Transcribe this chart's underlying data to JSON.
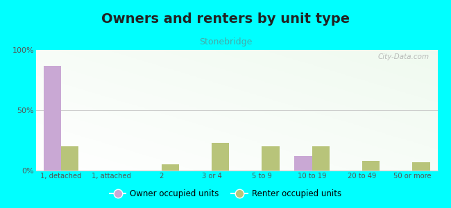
{
  "title": "Owners and renters by unit type",
  "subtitle": "Stonebridge",
  "categories": [
    "1, detached",
    "1, attached",
    "2",
    "3 or 4",
    "5 to 9",
    "10 to 19",
    "20 to 49",
    "50 or more"
  ],
  "owner_values": [
    87,
    0,
    0,
    0,
    0,
    12,
    0,
    0
  ],
  "renter_values": [
    20,
    0,
    5,
    23,
    20,
    20,
    8,
    7
  ],
  "owner_color": "#c9a8d4",
  "renter_color": "#b8c47a",
  "title_fontsize": 14,
  "subtitle_fontsize": 9,
  "subtitle_color": "#44aaaa",
  "title_color": "#222222",
  "ylim": [
    0,
    100
  ],
  "yticks": [
    0,
    50,
    100
  ],
  "ytick_labels": [
    "0%",
    "50%",
    "100%"
  ],
  "background_color": "#00ffff",
  "bar_width": 0.35,
  "grid_color": "#cccccc",
  "watermark": "City-Data.com",
  "watermark_color": "#aaaaaa",
  "plot_bg_left": "#e8f5e8",
  "plot_bg_right": "#f8fff8"
}
